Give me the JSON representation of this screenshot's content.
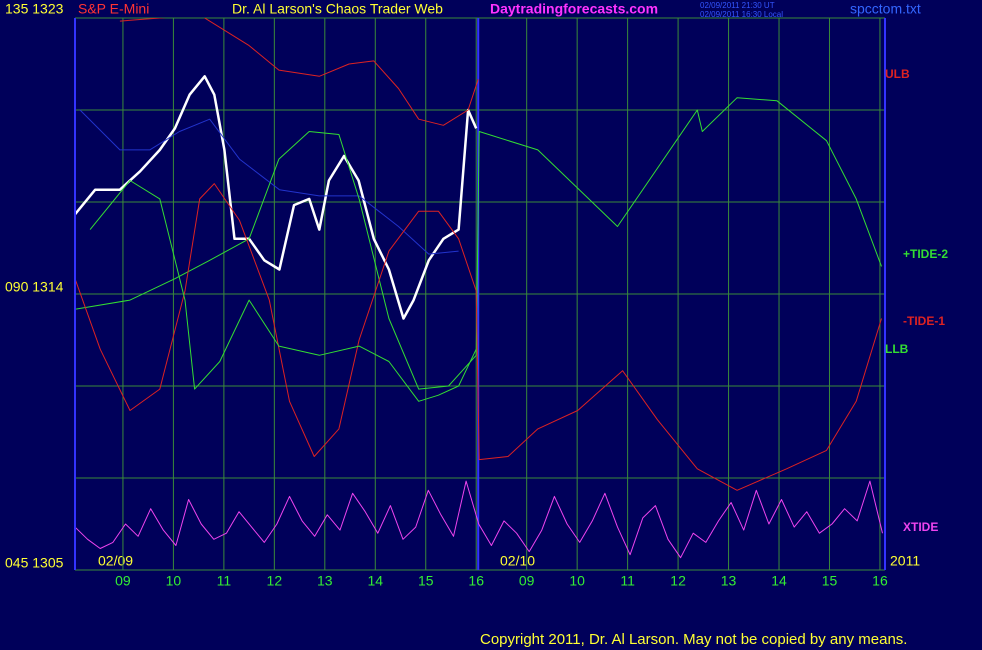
{
  "chart_data": {
    "type": "line",
    "title": "Dr. Al Larson's Chaos Trader Web",
    "instrument": "S&P E-Mini",
    "site": "Daytradingforecasts.com",
    "timestamps": [
      "02/09/2011 21:30 UT",
      "02/09/2011 16:30 Local"
    ],
    "file": "spcctom.txt",
    "copyright": "Copyright 2011, Dr. Al Larson. May not be copied by any means.",
    "date_labels": [
      "02/09",
      "02/10",
      "2011"
    ],
    "xlim": [
      0.05,
      16.1
    ],
    "xticks": [
      {
        "value": 1,
        "label": "09"
      },
      {
        "value": 2,
        "label": "10"
      },
      {
        "value": 3,
        "label": "11"
      },
      {
        "value": 4,
        "label": "12"
      },
      {
        "value": 5,
        "label": "13"
      },
      {
        "value": 6,
        "label": "14"
      },
      {
        "value": 7,
        "label": "15"
      },
      {
        "value": 8,
        "label": "16"
      },
      {
        "value": 9,
        "label": "09"
      },
      {
        "value": 10,
        "label": "10"
      },
      {
        "value": 11,
        "label": "11"
      },
      {
        "value": 12,
        "label": "12"
      },
      {
        "value": 13,
        "label": "13"
      },
      {
        "value": 14,
        "label": "14"
      },
      {
        "value": 15,
        "label": "15"
      },
      {
        "value": 16,
        "label": "16"
      }
    ],
    "ylim": [
      1305,
      1323
    ],
    "yticks": [
      {
        "value": 1323,
        "label": "135 1323"
      },
      {
        "value": 1314,
        "label": "090 1314"
      },
      {
        "value": 1305,
        "label": "045 1305"
      }
    ],
    "ygrid": [
      1305,
      1308,
      1311,
      1314,
      1317,
      1320,
      1323
    ],
    "grid": true,
    "series": [
      {
        "color": "#ffffff",
        "width": 2.5,
        "x": [
          0.05,
          0.45,
          0.94,
          1.34,
          1.73,
          2.03,
          2.32,
          2.62,
          2.81,
          3.01,
          3.21,
          3.5,
          3.8,
          4.1,
          4.39,
          4.69,
          4.89,
          5.08,
          5.38,
          5.67,
          5.97,
          6.27,
          6.56,
          6.76,
          7.06,
          7.35,
          7.65,
          7.84,
          8.0
        ],
        "values": [
          1316.6,
          1317.4,
          1317.4,
          1318.0,
          1318.7,
          1319.4,
          1320.5,
          1321.1,
          1320.5,
          1318.7,
          1315.8,
          1315.8,
          1315.1,
          1314.8,
          1316.9,
          1317.1,
          1316.1,
          1317.7,
          1318.5,
          1317.7,
          1315.8,
          1314.8,
          1313.2,
          1313.8,
          1315.1,
          1315.8,
          1316.1,
          1320.0,
          1319.4
        ]
      },
      {
        "color": "#2233cc",
        "width": 1,
        "x": [
          0.15,
          0.94,
          1.53,
          2.12,
          2.72,
          3.31,
          4.1,
          4.89,
          5.68,
          6.46,
          7.06,
          7.65
        ],
        "values": [
          1320.0,
          1318.7,
          1318.7,
          1319.3,
          1319.7,
          1318.4,
          1317.4,
          1317.2,
          1317.2,
          1316.2,
          1315.3,
          1315.4
        ]
      },
      {
        "name": "ULB",
        "color": "#dd2222",
        "width": 1,
        "x": [
          0.94,
          2.52,
          3.5,
          4.09,
          4.89,
          5.48,
          5.97,
          6.46,
          6.86,
          7.35,
          7.84,
          8.04
        ],
        "values": [
          1322.9,
          1323.1,
          1322.1,
          1321.3,
          1321.1,
          1321.5,
          1321.6,
          1320.7,
          1319.7,
          1319.5,
          1320.0,
          1321.0
        ]
      },
      {
        "name": "+TIDE-2",
        "color": "#33dd33",
        "width": 1,
        "x": [
          0.05,
          1.14,
          2.03,
          2.72,
          3.5,
          4.09,
          4.69,
          5.28,
          5.68,
          6.27,
          6.86,
          7.45,
          8.0,
          8.06,
          9.22,
          10.8,
          12.38,
          12.48,
          13.17,
          13.96,
          14.94,
          15.53,
          16.03
        ],
        "values": [
          1313.5,
          1313.8,
          1314.5,
          1315.1,
          1315.8,
          1318.4,
          1319.3,
          1319.2,
          1317.1,
          1313.2,
          1310.9,
          1311.0,
          1312.0,
          1319.3,
          1318.7,
          1316.2,
          1320.0,
          1319.3,
          1320.4,
          1320.3,
          1319.0,
          1317.1,
          1314.9
        ]
      },
      {
        "name": "-TIDE-1",
        "color": "#dd2222",
        "width": 1,
        "x": [
          0.05,
          0.55,
          1.14,
          1.73,
          2.23,
          2.52,
          2.81,
          3.31,
          3.9,
          4.3,
          4.79,
          5.28,
          5.68,
          6.27,
          6.86,
          7.25,
          7.65,
          8.0,
          8.06,
          8.63,
          9.22,
          10.01,
          10.9,
          11.59,
          12.38,
          13.17,
          14.15,
          14.94,
          15.53,
          16.03
        ],
        "values": [
          1314.5,
          1312.2,
          1310.2,
          1310.9,
          1314.1,
          1317.1,
          1317.6,
          1316.4,
          1313.8,
          1310.5,
          1308.7,
          1309.6,
          1312.5,
          1315.4,
          1316.7,
          1316.7,
          1315.8,
          1314.1,
          1308.6,
          1308.7,
          1309.6,
          1310.2,
          1311.5,
          1309.9,
          1308.3,
          1307.6,
          1308.3,
          1308.9,
          1310.5,
          1313.2
        ]
      },
      {
        "name": "LLB",
        "color": "#33dd33",
        "width": 1,
        "x": [
          0.35,
          1.14,
          1.73,
          2.23,
          2.42,
          2.92,
          3.5,
          4.09,
          4.89,
          5.68,
          6.27,
          6.86,
          7.25,
          7.65,
          8.0
        ],
        "values": [
          1316.1,
          1317.7,
          1317.1,
          1313.8,
          1310.9,
          1311.8,
          1313.8,
          1312.3,
          1312.0,
          1312.3,
          1311.8,
          1310.5,
          1310.7,
          1311.0,
          1312.2
        ]
      },
      {
        "name": "XTIDE",
        "color": "#ee44ee",
        "width": 1,
        "x": [
          0.05,
          0.3,
          0.55,
          0.8,
          1.05,
          1.3,
          1.55,
          1.8,
          2.05,
          2.3,
          2.55,
          2.8,
          3.05,
          3.3,
          3.55,
          3.8,
          4.05,
          4.3,
          4.55,
          4.8,
          5.05,
          5.3,
          5.55,
          5.8,
          6.05,
          6.3,
          6.55,
          6.8,
          7.05,
          7.3,
          7.55,
          7.8,
          8.05,
          8.3,
          8.55,
          8.8,
          9.05,
          9.3,
          9.55,
          9.8,
          10.05,
          10.3,
          10.55,
          10.8,
          11.05,
          11.3,
          11.55,
          11.8,
          12.05,
          12.3,
          12.55,
          12.8,
          13.05,
          13.3,
          13.55,
          13.8,
          14.05,
          14.3,
          14.55,
          14.8,
          15.05,
          15.3,
          15.55,
          15.8,
          16.05
        ],
        "values": [
          1306.4,
          1306.0,
          1305.7,
          1305.9,
          1306.5,
          1306.1,
          1307.0,
          1306.3,
          1305.8,
          1307.3,
          1306.5,
          1306.0,
          1306.2,
          1306.9,
          1306.4,
          1305.9,
          1306.5,
          1307.4,
          1306.6,
          1306.1,
          1306.8,
          1306.3,
          1307.5,
          1306.9,
          1306.2,
          1307.1,
          1306.0,
          1306.4,
          1307.6,
          1306.8,
          1306.1,
          1307.9,
          1306.5,
          1305.8,
          1306.6,
          1306.2,
          1305.6,
          1306.3,
          1307.4,
          1306.5,
          1305.9,
          1306.6,
          1307.5,
          1306.4,
          1305.5,
          1306.7,
          1307.1,
          1306.0,
          1305.4,
          1306.2,
          1305.9,
          1306.6,
          1307.2,
          1306.3,
          1307.6,
          1306.5,
          1307.3,
          1306.4,
          1306.9,
          1306.2,
          1306.5,
          1307.0,
          1306.6,
          1307.9,
          1306.2
        ]
      }
    ]
  }
}
